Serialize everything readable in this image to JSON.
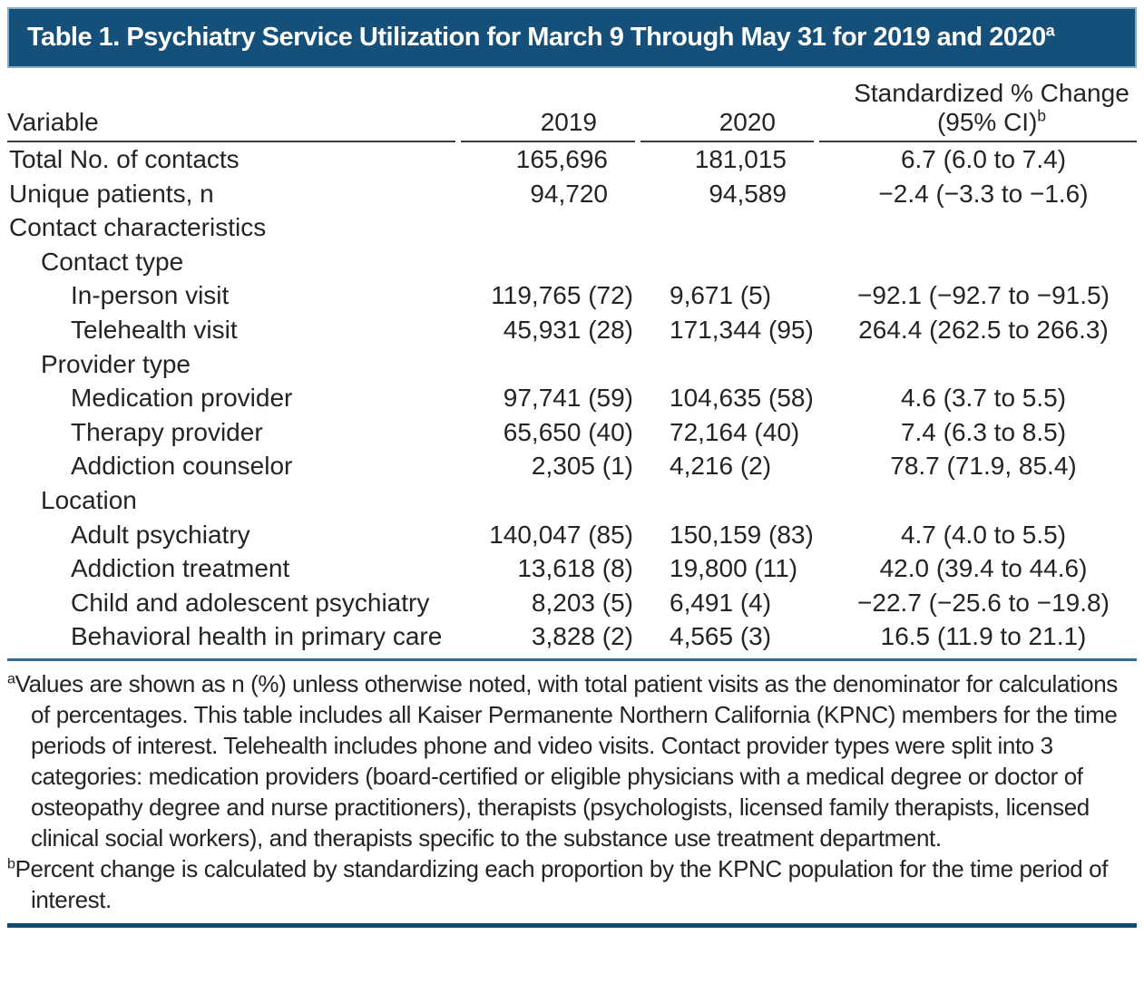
{
  "colors": {
    "title_bg": "#15507a",
    "title_text": "#ffffff",
    "body_text": "#242424",
    "header_rule": "#3c3c3c",
    "mid_rule": "#2d6d9a",
    "bottom_rule": "#104b72"
  },
  "title": {
    "text": "Table 1. Psychiatry Service Utilization for March 9 Through May 31 for 2019 and 2020",
    "footnote_mark": "a"
  },
  "header": {
    "variable": "Variable",
    "year_2019": "2019",
    "year_2020": "2020",
    "change_line1": "Standardized % Change",
    "change_line2": "(95% CI)",
    "change_footnote_mark": "b"
  },
  "rows": [
    {
      "label": "Total No. of contacts",
      "v2019": "165,696",
      "v2020": "181,015",
      "change": "6.7 (6.0 to 7.4)"
    },
    {
      "label": "Unique patients, n",
      "v2019": "94,720",
      "v2020": "94,589",
      "change": "−2.4 (−3.3 to −1.6)"
    },
    {
      "label": "Contact characteristics"
    },
    {
      "label": "Contact type"
    },
    {
      "label": "In-person visit",
      "v2019": "119,765 (72)",
      "v2020": "9,671 (5)",
      "change": "−92.1 (−92.7 to −91.5)"
    },
    {
      "label": "Telehealth visit",
      "v2019": "45,931 (28)",
      "v2020": "171,344 (95)",
      "change": "264.4 (262.5 to 266.3)"
    },
    {
      "label": "Provider type"
    },
    {
      "label": "Medication provider",
      "v2019": "97,741 (59)",
      "v2020": "104,635 (58)",
      "change": "4.6 (3.7 to 5.5)"
    },
    {
      "label": "Therapy provider",
      "v2019": "65,650 (40)",
      "v2020": "72,164 (40)",
      "change": "7.4 (6.3 to 8.5)"
    },
    {
      "label": "Addiction counselor",
      "v2019": "2,305 (1)",
      "v2020": "4,216 (2)",
      "change": "78.7 (71.9, 85.4)"
    },
    {
      "label": "Location"
    },
    {
      "label": "Adult psychiatry",
      "v2019": "140,047 (85)",
      "v2020": "150,159 (83)",
      "change": "4.7 (4.0 to 5.5)"
    },
    {
      "label": "Addiction treatment",
      "v2019": "13,618 (8)",
      "v2020": "19,800 (11)",
      "change": "42.0 (39.4 to 44.6)"
    },
    {
      "label": "Child and adolescent psychiatry",
      "v2019": "8,203 (5)",
      "v2020": "6,491 (4)",
      "change": "−22.7 (−25.6 to −19.8)"
    },
    {
      "label": "Behavioral health in primary care",
      "v2019": "3,828 (2)",
      "v2020": "4,565 (3)",
      "change": "16.5 (11.9 to 21.1)"
    }
  ],
  "footnotes": [
    {
      "mark": "a",
      "text": "Values are shown as n (%) unless otherwise noted, with total patient visits as the denominator for calculations of percentages. This table includes all Kaiser Permanente Northern California (KPNC) members for the time periods of interest. Telehealth includes phone and video visits. Contact provider types were split into 3 categories: medication providers (board-certified or eligible physicians with a medical degree or doctor of osteopathy degree and nurse practitioners), therapists (psychologists, licensed family therapists, licensed clinical social workers), and therapists specific to the substance use treatment department."
    },
    {
      "mark": "b",
      "text": "Percent change is calculated by standardizing each proportion by the KPNC population for the time period of interest."
    }
  ]
}
